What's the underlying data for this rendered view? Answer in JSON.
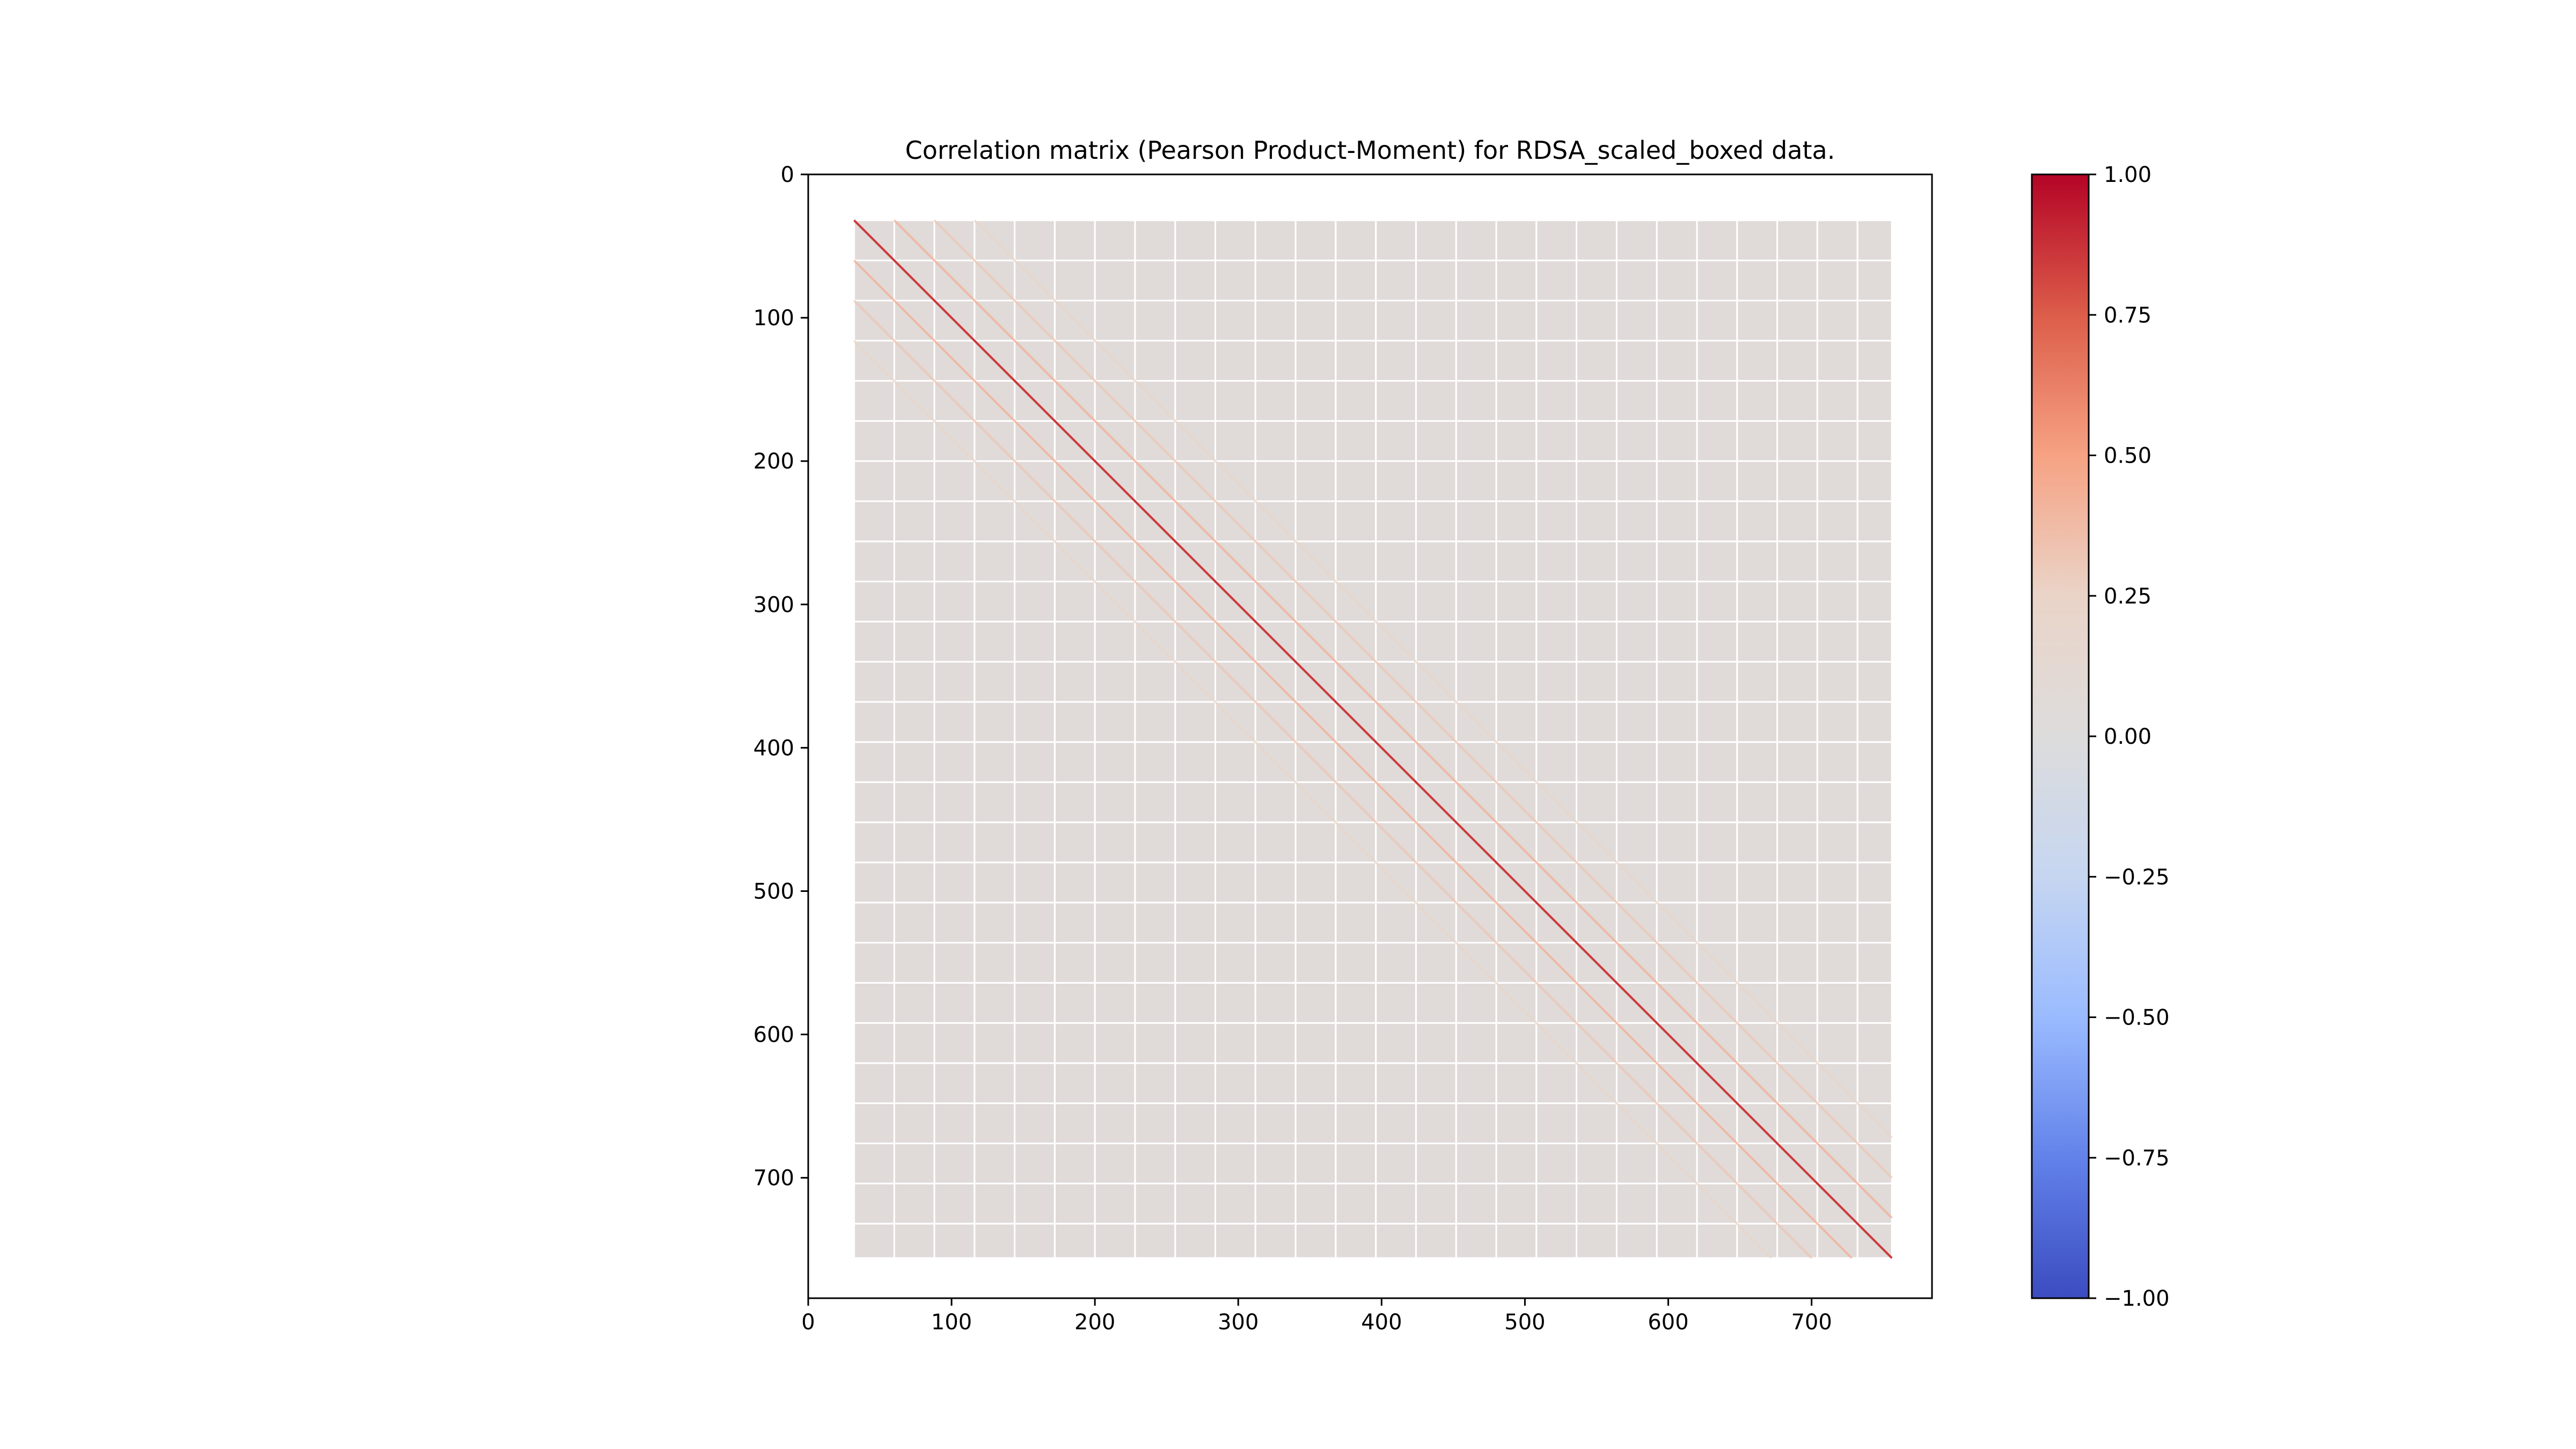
{
  "chart_data": {
    "type": "heatmap",
    "title": "Correlation matrix (Pearson Product-Moment) for RDSA_scaled_boxed data.",
    "xlabel": "",
    "ylabel": "",
    "matrix_size": 784,
    "xlim": [
      0,
      784
    ],
    "ylim": [
      784,
      0
    ],
    "x_ticks": [
      0,
      100,
      200,
      300,
      400,
      500,
      600,
      700
    ],
    "y_ticks": [
      0,
      100,
      200,
      300,
      400,
      500,
      600,
      700
    ],
    "x_tick_labels": [
      "0",
      "100",
      "200",
      "300",
      "400",
      "500",
      "600",
      "700"
    ],
    "y_tick_labels": [
      "0",
      "100",
      "200",
      "300",
      "400",
      "500",
      "600",
      "700"
    ],
    "data_range": [
      32,
      756
    ],
    "block_size": 28,
    "blocks_per_side": 26,
    "diagonal_value": 1.0,
    "near_diagonal_value": 0.55,
    "offdiagonal_typical_value": 0.05,
    "colormap": "coolwarm",
    "colorbar": {
      "range": [
        -1.0,
        1.0
      ],
      "ticks": [
        1.0,
        0.75,
        0.5,
        0.25,
        0.0,
        -0.25,
        -0.5,
        -0.75,
        -1.0
      ],
      "tick_labels": [
        "1.00",
        "0.75",
        "0.50",
        "0.25",
        "0.00",
        "−0.25",
        "−0.50",
        "−0.75",
        "−1.00"
      ],
      "colors": [
        "#b40426",
        "#dc5d4a",
        "#f6a283",
        "#ead4c8",
        "#dddcdc",
        "#c6d6f1",
        "#9abbff",
        "#6282ea",
        "#3b4cc0"
      ]
    },
    "grid": false,
    "legend": "colorbar-right"
  }
}
